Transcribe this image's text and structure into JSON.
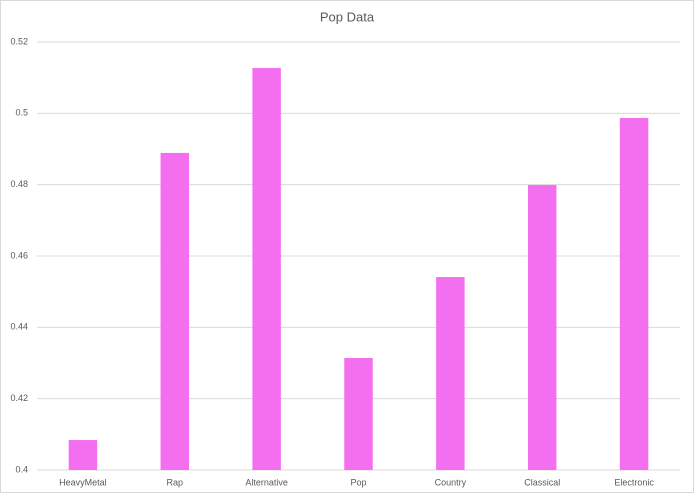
{
  "chart_data": {
    "type": "bar",
    "title": "Pop Data",
    "categories": [
      "HeavyMetal",
      "Rap",
      "Alternative",
      "Pop",
      "Country",
      "Classical",
      "Electronic"
    ],
    "values": [
      0.4084,
      0.4889,
      0.5127,
      0.4314,
      0.4541,
      0.4799,
      0.4987
    ],
    "color": "#f46ff0",
    "ylim": [
      0.4,
      0.52
    ],
    "yticks": [
      0.4,
      0.42,
      0.44,
      0.46,
      0.48,
      0.5,
      0.52
    ],
    "grid": true
  }
}
